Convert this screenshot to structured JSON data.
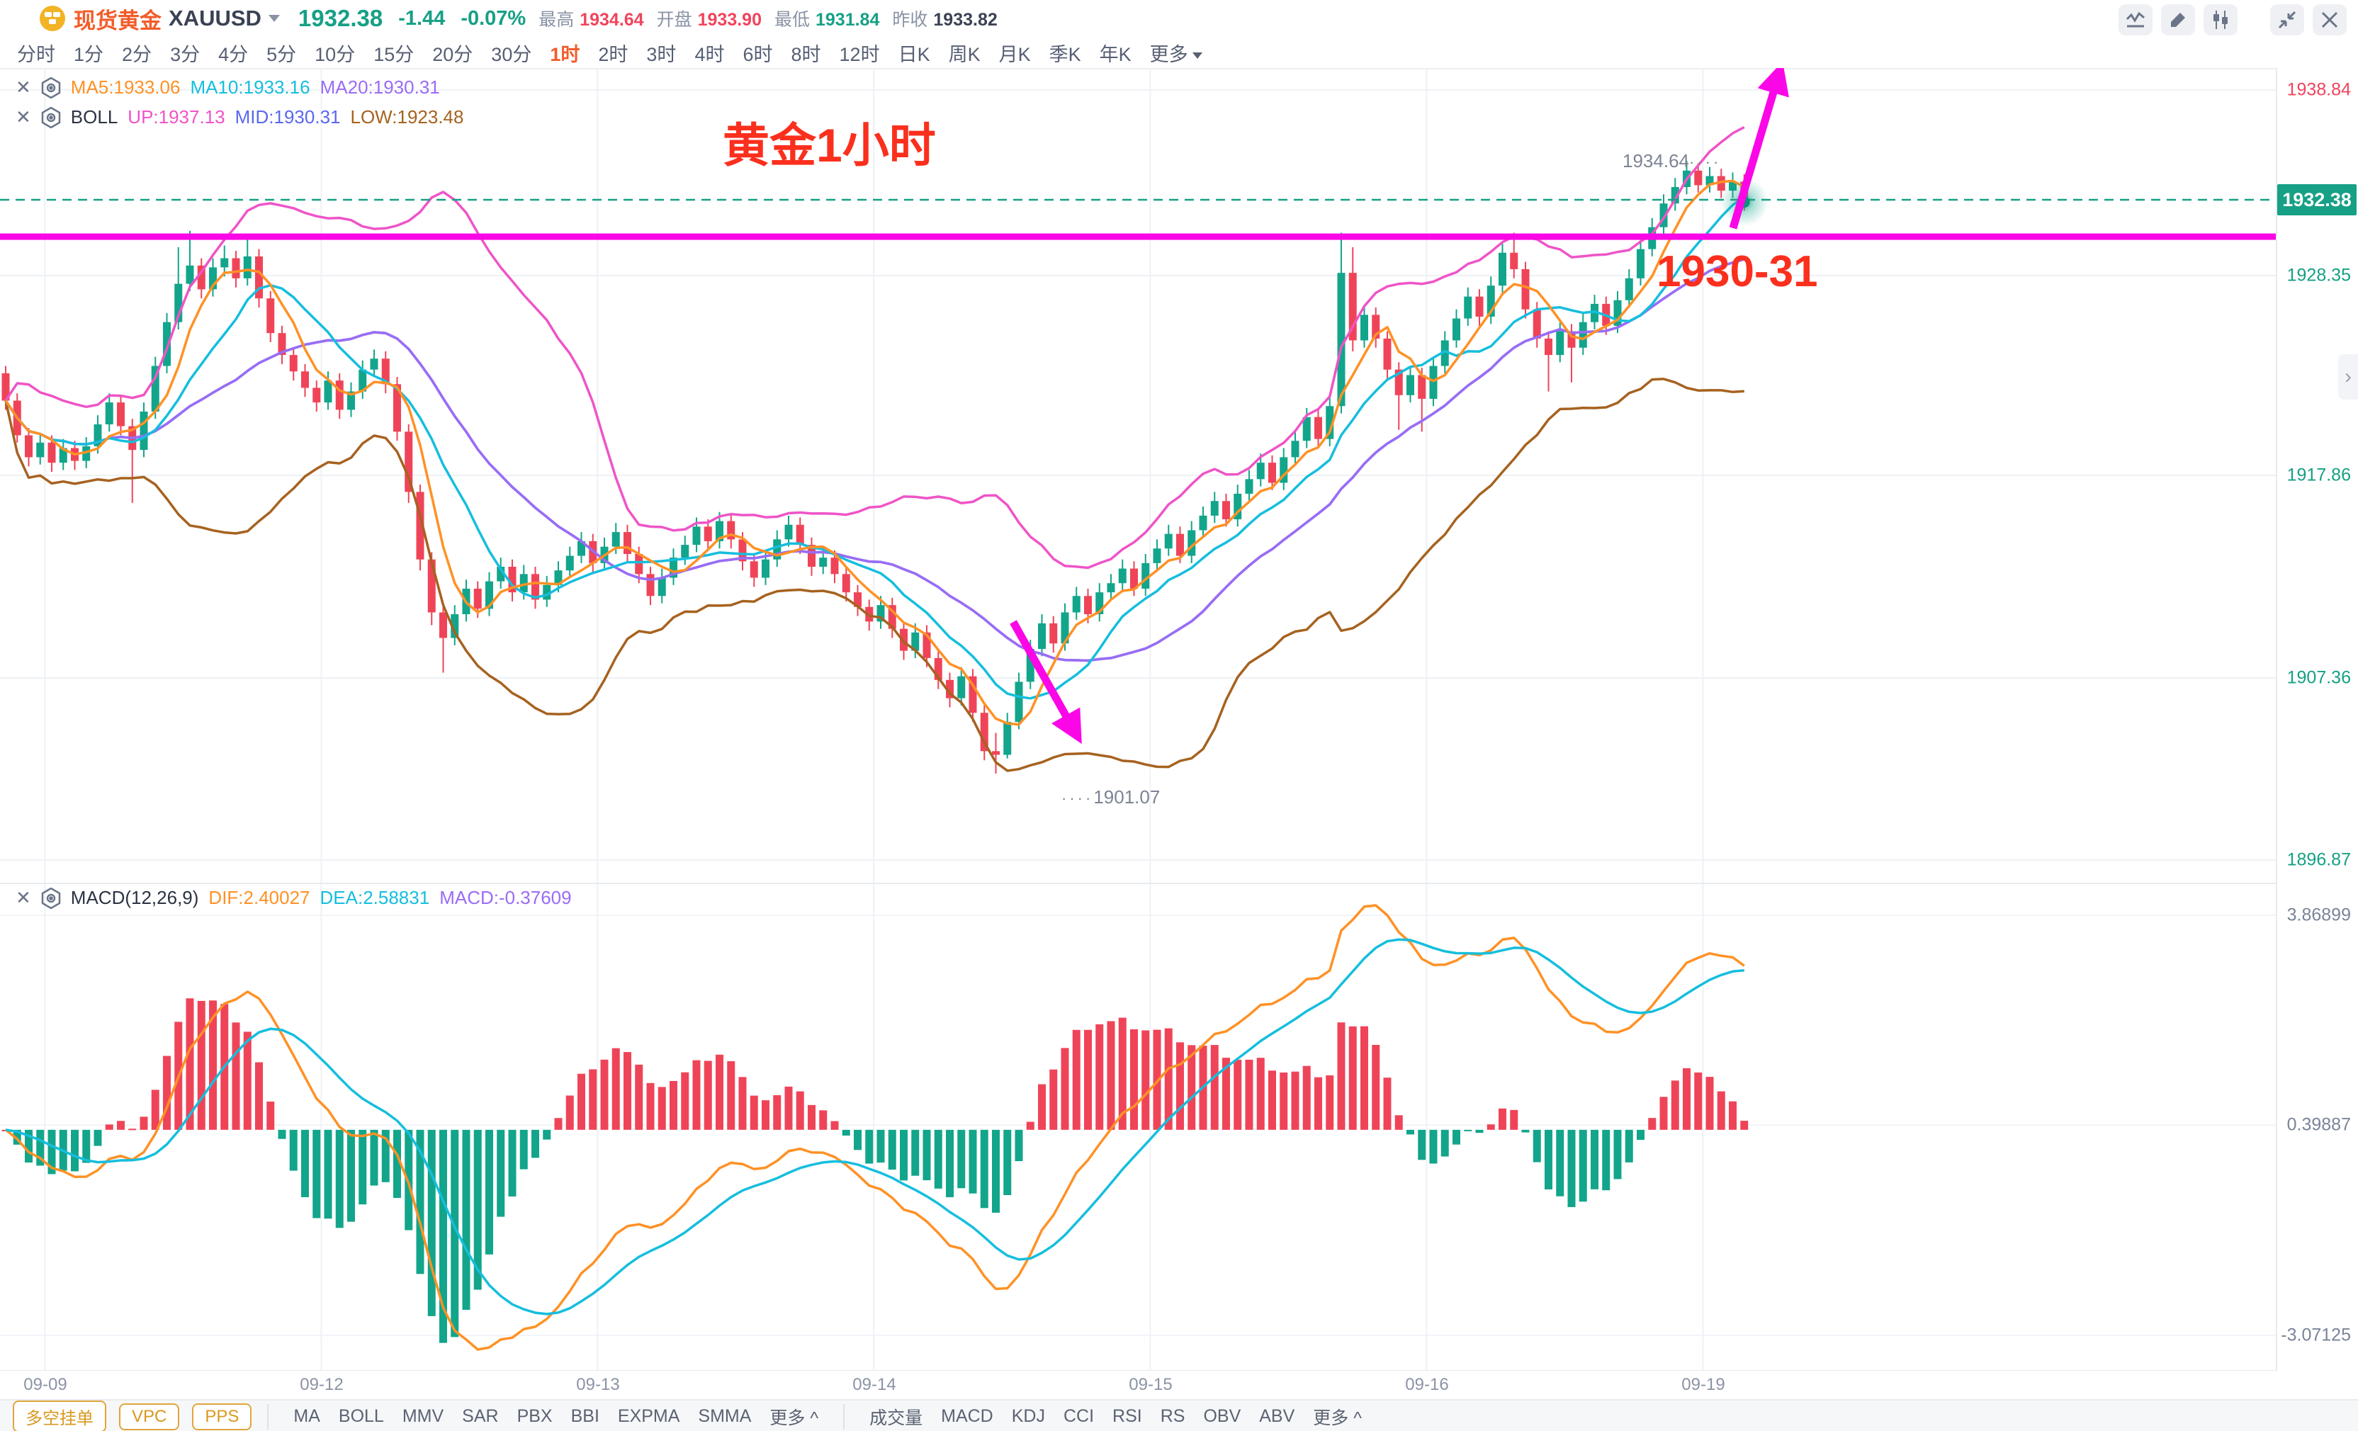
{
  "header": {
    "symbol_name": "现货黄金",
    "symbol_code": "XAUUSD",
    "price": "1932.38",
    "change": "-1.44",
    "change_pct": "-0.07%",
    "stats": [
      {
        "label": "最高",
        "value": "1934.64"
      },
      {
        "label": "开盘",
        "value": "1933.90"
      },
      {
        "label": "最低",
        "value": "1931.84"
      },
      {
        "label": "昨收",
        "value": "1933.82"
      }
    ],
    "icons": [
      "line-chart",
      "draw",
      "candlestick",
      "collapse",
      "close"
    ]
  },
  "timeframes": {
    "items": [
      "分时",
      "1分",
      "2分",
      "3分",
      "4分",
      "5分",
      "10分",
      "15分",
      "20分",
      "30分",
      "1时",
      "2时",
      "3时",
      "4时",
      "6时",
      "8时",
      "12时",
      "日K",
      "周K",
      "月K",
      "季K",
      "年K",
      "更多"
    ],
    "active": "1时"
  },
  "legends": {
    "ma": {
      "ma5": "MA5:1933.06",
      "ma10": "MA10:1933.16",
      "ma20": "MA20:1930.31"
    },
    "boll": {
      "title": "BOLL",
      "up": "UP:1937.13",
      "mid": "MID:1930.31",
      "low": "LOW:1923.48"
    },
    "macd": {
      "title": "MACD(12,26,9)",
      "dif": "DIF:2.40027",
      "dea": "DEA:2.58831",
      "macd": "MACD:-0.37609"
    }
  },
  "axis": {
    "main": [
      "1938.84",
      "1928.35",
      "1917.86",
      "1907.36",
      "1896.87"
    ],
    "macd": [
      "3.86899",
      "0.39887",
      "-3.07125"
    ],
    "dates": [
      "09-09",
      "09-12",
      "09-13",
      "09-14",
      "09-15",
      "09-16",
      "09-19"
    ]
  },
  "annotations": {
    "title": "黄金1小时",
    "level_label": "1930-31",
    "high_label": "1934.64",
    "low_label": "1901.07",
    "leader_dots": "····",
    "current_price": "1932.38"
  },
  "bottom": {
    "chips": [
      "多空挂单",
      "VPC",
      "PPS"
    ],
    "main_indicators": [
      "MA",
      "BOLL",
      "MMV",
      "SAR",
      "PBX",
      "BBI",
      "EXPMA",
      "SMMA",
      "更多 ^"
    ],
    "sub_indicators": [
      "成交量",
      "MACD",
      "KDJ",
      "CCI",
      "RSI",
      "RS",
      "OBV",
      "ABV",
      "更多 ^"
    ]
  },
  "colors": {
    "up_candle": "#12a58b",
    "down_candle": "#ef4458",
    "ma5": "#ff9125",
    "ma10": "#15bedd",
    "ma20": "#9a6cf5",
    "boll_up": "#ef54c8",
    "boll_mid": "#5a68ee",
    "boll_low": "#a6621f",
    "magenta": "#fb06e7",
    "teal": "#16a085",
    "grid": "#eef1f5",
    "hist_pos": "#ef4458",
    "hist_neg": "#12a58b"
  },
  "chart_data": {
    "type": "candlestick",
    "symbol": "XAUUSD",
    "interval": "1h",
    "support_level": 1930.5,
    "current_price": 1932.38,
    "high_point": 1934.64,
    "low_point": 1901.07,
    "overlays": {
      "ma_periods": [
        5,
        10,
        20
      ],
      "boll": {
        "period": 20,
        "dev": 2
      },
      "macd": [
        12,
        26,
        9
      ]
    },
    "day_tick_indices": [
      3,
      27,
      51,
      75,
      99,
      123,
      147
    ],
    "candles": [
      [
        1923.0,
        1923.4,
        1921.0,
        1921.5
      ],
      [
        1921.5,
        1921.9,
        1919.2,
        1919.6
      ],
      [
        1919.6,
        1920.0,
        1917.9,
        1918.4
      ],
      [
        1918.4,
        1919.7,
        1918.0,
        1919.2
      ],
      [
        1919.2,
        1919.6,
        1917.6,
        1918.1
      ],
      [
        1918.1,
        1919.4,
        1917.7,
        1918.9
      ],
      [
        1918.9,
        1919.3,
        1917.7,
        1918.2
      ],
      [
        1918.2,
        1919.5,
        1917.8,
        1919.0
      ],
      [
        1919.0,
        1920.7,
        1918.6,
        1920.2
      ],
      [
        1920.2,
        1921.9,
        1919.8,
        1921.4
      ],
      [
        1921.4,
        1921.8,
        1919.6,
        1920.1
      ],
      [
        1920.1,
        1920.5,
        1915.9,
        1918.8
      ],
      [
        1918.8,
        1921.4,
        1918.4,
        1920.9
      ],
      [
        1920.9,
        1923.9,
        1920.5,
        1923.4
      ],
      [
        1923.4,
        1926.3,
        1923.0,
        1925.8
      ],
      [
        1925.8,
        1929.9,
        1925.4,
        1927.9
      ],
      [
        1927.9,
        1930.8,
        1927.5,
        1928.9
      ],
      [
        1928.9,
        1929.3,
        1927.1,
        1927.6
      ],
      [
        1927.6,
        1929.3,
        1927.2,
        1928.8
      ],
      [
        1928.8,
        1930.0,
        1928.3,
        1929.3
      ],
      [
        1929.3,
        1929.7,
        1927.7,
        1928.2
      ],
      [
        1928.2,
        1930.6,
        1927.8,
        1929.4
      ],
      [
        1929.4,
        1929.8,
        1926.6,
        1927.1
      ],
      [
        1927.1,
        1927.5,
        1924.7,
        1925.2
      ],
      [
        1925.2,
        1925.6,
        1923.5,
        1924.0
      ],
      [
        1924.0,
        1924.4,
        1922.6,
        1923.1
      ],
      [
        1923.1,
        1923.5,
        1921.7,
        1922.2
      ],
      [
        1922.2,
        1922.6,
        1920.9,
        1921.4
      ],
      [
        1921.4,
        1923.1,
        1921.0,
        1922.6
      ],
      [
        1922.6,
        1923.0,
        1920.5,
        1921.0
      ],
      [
        1921.0,
        1922.5,
        1920.6,
        1922.0
      ],
      [
        1922.0,
        1923.7,
        1921.6,
        1923.2
      ],
      [
        1923.2,
        1924.3,
        1922.8,
        1923.8
      ],
      [
        1923.8,
        1924.2,
        1921.9,
        1922.4
      ],
      [
        1922.4,
        1922.8,
        1919.3,
        1919.8
      ],
      [
        1919.8,
        1920.2,
        1915.9,
        1916.5
      ],
      [
        1916.5,
        1916.9,
        1912.2,
        1912.8
      ],
      [
        1912.8,
        1913.2,
        1909.2,
        1909.9
      ],
      [
        1909.9,
        1910.3,
        1906.6,
        1908.5
      ],
      [
        1908.5,
        1910.3,
        1908.1,
        1909.8
      ],
      [
        1909.8,
        1911.7,
        1909.4,
        1911.2
      ],
      [
        1911.2,
        1911.6,
        1909.6,
        1910.1
      ],
      [
        1910.1,
        1912.1,
        1909.7,
        1911.6
      ],
      [
        1911.6,
        1912.9,
        1911.2,
        1912.4
      ],
      [
        1912.4,
        1912.8,
        1910.5,
        1911.0
      ],
      [
        1911.0,
        1912.5,
        1910.6,
        1912.0
      ],
      [
        1912.0,
        1912.4,
        1910.1,
        1910.6
      ],
      [
        1910.6,
        1911.9,
        1910.2,
        1911.4
      ],
      [
        1911.4,
        1912.7,
        1911.0,
        1912.2
      ],
      [
        1912.2,
        1913.5,
        1911.8,
        1913.0
      ],
      [
        1913.0,
        1914.3,
        1912.6,
        1913.8
      ],
      [
        1913.8,
        1914.2,
        1912.1,
        1912.6
      ],
      [
        1912.6,
        1914.0,
        1912.2,
        1913.5
      ],
      [
        1913.5,
        1914.8,
        1913.1,
        1914.3
      ],
      [
        1914.3,
        1914.7,
        1912.6,
        1913.1
      ],
      [
        1913.1,
        1913.5,
        1911.5,
        1912.0
      ],
      [
        1912.0,
        1912.4,
        1910.3,
        1910.8
      ],
      [
        1910.8,
        1912.3,
        1910.4,
        1911.8
      ],
      [
        1911.8,
        1913.4,
        1911.4,
        1912.9
      ],
      [
        1912.9,
        1914.1,
        1912.5,
        1913.6
      ],
      [
        1913.6,
        1915.1,
        1913.2,
        1914.6
      ],
      [
        1914.6,
        1915.0,
        1913.3,
        1913.8
      ],
      [
        1913.8,
        1915.4,
        1913.4,
        1914.9
      ],
      [
        1914.9,
        1915.3,
        1913.4,
        1913.9
      ],
      [
        1913.9,
        1914.3,
        1912.2,
        1912.7
      ],
      [
        1912.7,
        1913.1,
        1911.3,
        1911.8
      ],
      [
        1911.8,
        1913.3,
        1911.4,
        1912.8
      ],
      [
        1912.8,
        1914.4,
        1912.4,
        1913.9
      ],
      [
        1913.9,
        1915.2,
        1913.5,
        1914.7
      ],
      [
        1914.7,
        1915.1,
        1913.1,
        1913.6
      ],
      [
        1913.6,
        1914.0,
        1911.9,
        1912.4
      ],
      [
        1912.4,
        1913.4,
        1912.0,
        1912.9
      ],
      [
        1912.9,
        1913.3,
        1911.5,
        1912.0
      ],
      [
        1912.0,
        1912.4,
        1910.5,
        1911.0
      ],
      [
        1911.0,
        1911.4,
        1909.7,
        1910.2
      ],
      [
        1910.2,
        1910.6,
        1908.9,
        1909.4
      ],
      [
        1909.4,
        1910.8,
        1909.0,
        1910.3
      ],
      [
        1910.3,
        1910.7,
        1908.5,
        1909.0
      ],
      [
        1909.0,
        1909.4,
        1907.3,
        1907.8
      ],
      [
        1907.8,
        1909.3,
        1907.4,
        1908.8
      ],
      [
        1908.8,
        1909.2,
        1906.9,
        1907.4
      ],
      [
        1907.4,
        1907.8,
        1905.7,
        1906.2
      ],
      [
        1906.2,
        1906.6,
        1904.7,
        1905.2
      ],
      [
        1905.2,
        1906.9,
        1904.8,
        1906.4
      ],
      [
        1906.4,
        1906.8,
        1903.9,
        1904.4
      ],
      [
        1904.4,
        1904.8,
        1901.8,
        1902.3
      ],
      [
        1902.3,
        1903.3,
        1901.07,
        1902.1
      ],
      [
        1902.1,
        1904.4,
        1901.9,
        1903.9
      ],
      [
        1903.9,
        1906.6,
        1903.5,
        1906.1
      ],
      [
        1906.1,
        1908.4,
        1905.7,
        1907.9
      ],
      [
        1907.9,
        1909.8,
        1907.5,
        1909.3
      ],
      [
        1909.3,
        1909.7,
        1907.7,
        1908.2
      ],
      [
        1908.2,
        1910.4,
        1907.8,
        1909.9
      ],
      [
        1909.9,
        1911.3,
        1909.5,
        1910.8
      ],
      [
        1910.8,
        1911.2,
        1909.3,
        1909.8
      ],
      [
        1909.8,
        1911.5,
        1909.4,
        1911.0
      ],
      [
        1911.0,
        1912.0,
        1910.6,
        1911.5
      ],
      [
        1911.5,
        1912.8,
        1911.1,
        1912.3
      ],
      [
        1912.3,
        1912.7,
        1910.8,
        1911.2
      ],
      [
        1911.2,
        1913.1,
        1910.8,
        1912.6
      ],
      [
        1912.6,
        1913.9,
        1912.2,
        1913.4
      ],
      [
        1913.4,
        1914.7,
        1913.0,
        1914.2
      ],
      [
        1914.2,
        1914.6,
        1912.6,
        1913.0
      ],
      [
        1913.0,
        1914.9,
        1912.6,
        1914.4
      ],
      [
        1914.4,
        1915.7,
        1914.0,
        1915.2
      ],
      [
        1915.2,
        1916.5,
        1914.8,
        1916.0
      ],
      [
        1916.0,
        1916.4,
        1914.6,
        1915.0
      ],
      [
        1915.0,
        1916.9,
        1914.6,
        1916.4
      ],
      [
        1916.4,
        1917.7,
        1916.0,
        1917.2
      ],
      [
        1917.2,
        1918.6,
        1916.8,
        1918.1
      ],
      [
        1918.1,
        1918.5,
        1916.6,
        1917.0
      ],
      [
        1917.0,
        1918.9,
        1916.6,
        1918.4
      ],
      [
        1918.4,
        1919.8,
        1918.0,
        1919.3
      ],
      [
        1919.3,
        1921.1,
        1918.9,
        1920.6
      ],
      [
        1920.6,
        1921.0,
        1918.9,
        1919.4
      ],
      [
        1919.4,
        1921.7,
        1919.0,
        1921.2
      ],
      [
        1921.2,
        1930.7,
        1920.8,
        1928.5
      ],
      [
        1928.5,
        1929.9,
        1924.2,
        1924.8
      ],
      [
        1924.8,
        1926.7,
        1924.4,
        1926.2
      ],
      [
        1926.2,
        1926.6,
        1924.4,
        1924.9
      ],
      [
        1924.9,
        1925.3,
        1922.7,
        1923.2
      ],
      [
        1923.2,
        1923.6,
        1919.9,
        1921.8
      ],
      [
        1921.8,
        1923.4,
        1921.4,
        1922.9
      ],
      [
        1922.9,
        1923.3,
        1919.8,
        1921.6
      ],
      [
        1921.6,
        1923.9,
        1921.2,
        1923.4
      ],
      [
        1923.4,
        1925.3,
        1923.0,
        1924.8
      ],
      [
        1924.8,
        1926.5,
        1924.4,
        1926.0
      ],
      [
        1926.0,
        1927.7,
        1925.6,
        1927.2
      ],
      [
        1927.2,
        1927.6,
        1925.6,
        1926.1
      ],
      [
        1926.1,
        1928.3,
        1925.7,
        1927.8
      ],
      [
        1927.8,
        1930.1,
        1927.4,
        1929.6
      ],
      [
        1929.6,
        1930.7,
        1928.2,
        1928.7
      ],
      [
        1928.7,
        1929.1,
        1926.0,
        1926.5
      ],
      [
        1926.5,
        1926.9,
        1924.4,
        1924.9
      ],
      [
        1924.9,
        1925.3,
        1922.0,
        1924.0
      ],
      [
        1924.0,
        1925.8,
        1923.6,
        1925.3
      ],
      [
        1925.3,
        1925.7,
        1922.5,
        1924.4
      ],
      [
        1924.4,
        1926.3,
        1924.0,
        1925.8
      ],
      [
        1925.8,
        1927.3,
        1925.4,
        1926.8
      ],
      [
        1926.8,
        1927.2,
        1925.1,
        1925.6
      ],
      [
        1925.6,
        1927.5,
        1925.2,
        1927.0
      ],
      [
        1927.0,
        1928.7,
        1926.6,
        1928.2
      ],
      [
        1928.2,
        1930.3,
        1927.8,
        1929.8
      ],
      [
        1929.8,
        1931.5,
        1929.4,
        1931.0
      ],
      [
        1931.0,
        1932.8,
        1930.6,
        1932.3
      ],
      [
        1932.3,
        1933.7,
        1931.9,
        1933.2
      ],
      [
        1933.2,
        1934.64,
        1932.8,
        1934.1
      ],
      [
        1934.1,
        1934.5,
        1932.9,
        1933.3
      ],
      [
        1933.3,
        1934.3,
        1932.9,
        1933.8
      ],
      [
        1933.8,
        1934.2,
        1932.6,
        1933.0
      ],
      [
        1933.0,
        1934.0,
        1932.6,
        1933.5
      ],
      [
        1933.5,
        1933.9,
        1931.9,
        1932.38
      ]
    ]
  }
}
